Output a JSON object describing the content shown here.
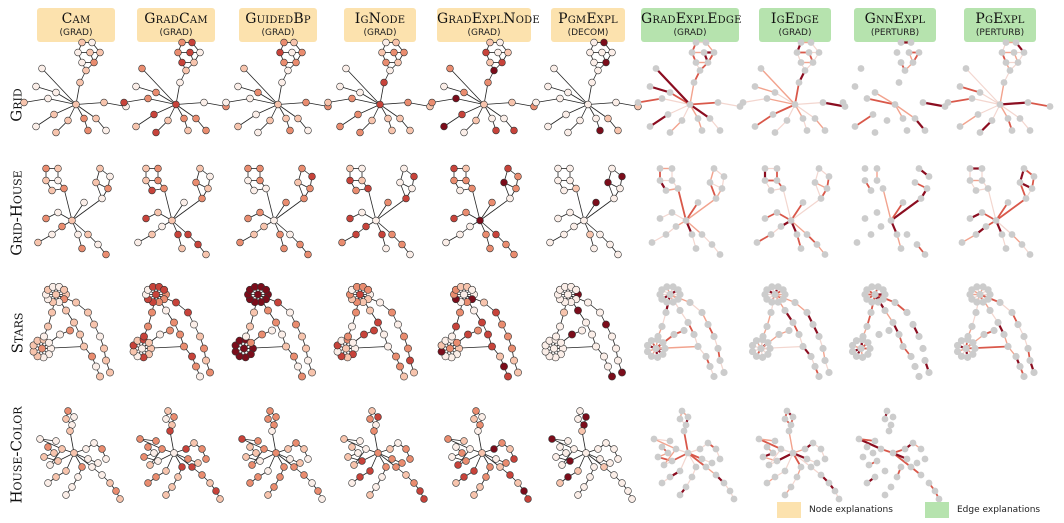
{
  "columns": [
    {
      "name": "Cam",
      "type": "(GRAD)",
      "kind": "node"
    },
    {
      "name": "GradCam",
      "type": "(GRAD)",
      "kind": "node"
    },
    {
      "name": "GuidedBp",
      "type": "(GRAD)",
      "kind": "node"
    },
    {
      "name": "IgNode",
      "type": "(GRAD)",
      "kind": "node"
    },
    {
      "name": "GradExplNode",
      "type": "(GRAD)",
      "kind": "node"
    },
    {
      "name": "PgmExpl",
      "type": "(DECOM)",
      "kind": "node"
    },
    {
      "name": "GradExplEdge",
      "type": "(GRAD)",
      "kind": "edge"
    },
    {
      "name": "IgEdge",
      "type": "(GRAD)",
      "kind": "edge"
    },
    {
      "name": "GnnExpl",
      "type": "(PERTURB)",
      "kind": "edge"
    },
    {
      "name": "PgExpl",
      "type": "(PERTURB)",
      "kind": "edge"
    }
  ],
  "rows": [
    "Grid",
    "Grid-House",
    "Stars",
    "House-Color"
  ],
  "legend": {
    "node": "Node explanations",
    "edge": "Edge explanations"
  },
  "colors": {
    "node_header": "#fce2ae",
    "edge_header": "#b6e3ae",
    "node_scale": [
      "#fbeee8",
      "#f7c4ad",
      "#e98c6f",
      "#c7433a",
      "#7b0d1b"
    ],
    "edge_base": "#cccccc"
  }
}
